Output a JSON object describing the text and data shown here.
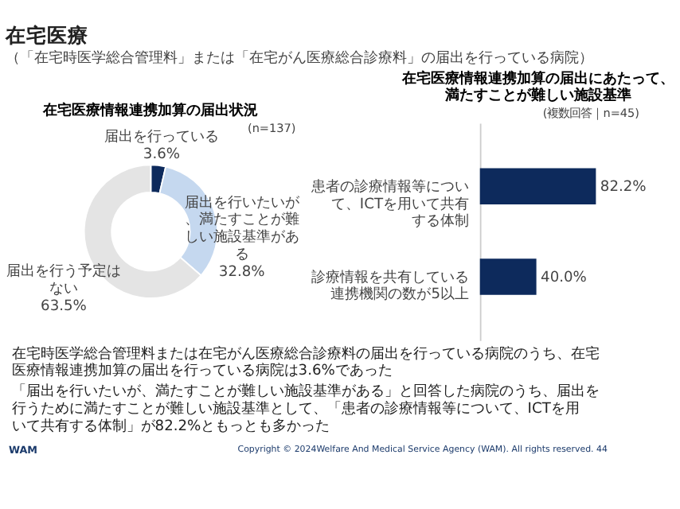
{
  "chart_data": [
    {
      "type": "donut",
      "title": "在宅医療情報連携加算の届出状況",
      "categories": [
        "届出を行っている",
        "届出を行いたいが、満たすことが難しい施設基準がある",
        "届出を行う予定はない"
      ],
      "values": [
        3.6,
        32.8,
        63.5
      ],
      "value_labels": [
        "3.6%",
        "32.8%",
        "63.5%"
      ],
      "colors": [
        "#0d2a5c",
        "#c5d8ef",
        "#e4e4e4"
      ],
      "legend": false,
      "annotations": [
        "在宅医療",
        "（「在宅時医学総合管理料」または「在宅がん医療総合診療料」の届出を行っている病院）",
        "(n=137)",
        "在宅時医学総合管理料または在宅がん医療総合診療料の届出を行っている病院のうち、在宅医療情報連携加算の届出を行っている病院は3.6%であった",
        "「届出を行いたいが、満たすことが難しい施設基準がある」と回答した病院のうち、届出を行うために満たすことが難しい施設基準として、「患者の診療情報等について、ICTを用いて共有する体制」が82.2%ともっとも多かった",
        "WAM",
        "Copyright © 2024Welfare And Medical Service Agency (WAM). All rights reserved.",
        "44"
      ]
    },
    {
      "type": "bar",
      "orientation": "horizontal",
      "title": "在宅医療情報連携加算の届出にあたって、満たすことが難しい施設基準",
      "categories": [
        "患者の診療情報等について、ICTを用いて共有する体制",
        "診療情報を共有している連携機関の数が5以上"
      ],
      "values": [
        82.2,
        40.0
      ],
      "value_labels": [
        "82.2%",
        "40.0%"
      ],
      "color": "#0d2a5c",
      "annotations": [
        "(複数回答｜n=45)"
      ]
    }
  ]
}
